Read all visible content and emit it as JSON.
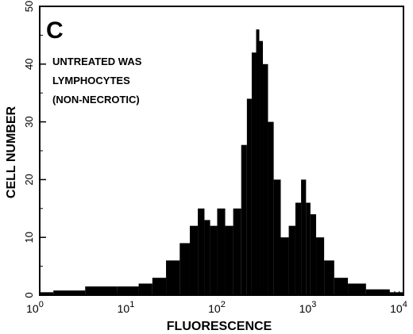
{
  "chart_data": {
    "type": "bar",
    "panel_label": "C",
    "annotation": [
      "UNTREATED WAS",
      "LYMPHOCYTES",
      "(NON-NECROTIC)"
    ],
    "xlabel": "FLUORESCENCE",
    "ylabel": "CELL NUMBER",
    "x_scale": "log",
    "xlim": [
      1,
      10000
    ],
    "ylim": [
      0,
      50
    ],
    "x_ticks": [
      {
        "value": 1,
        "base": "10",
        "exp": "0"
      },
      {
        "value": 10,
        "base": "10",
        "exp": "1"
      },
      {
        "value": 100,
        "base": "10",
        "exp": "2"
      },
      {
        "value": 1000,
        "base": "10",
        "exp": "3"
      },
      {
        "value": 10000,
        "base": "10",
        "exp": "4"
      }
    ],
    "y_ticks": [
      "0",
      "10",
      "20",
      "30",
      "40",
      "50"
    ],
    "grid": false,
    "legend": "none",
    "bar_color": "#000000",
    "series": [
      {
        "x": [
          1,
          2,
          5,
          10,
          15,
          20,
          30,
          40,
          50,
          60,
          70,
          80,
          100,
          120,
          150,
          180,
          200,
          230,
          250,
          270,
          300,
          350,
          400,
          500,
          600,
          700,
          800,
          900,
          1000,
          1200,
          1500,
          2000,
          3000,
          5000,
          10000
        ],
        "values": [
          0.5,
          0.8,
          1.5,
          1.5,
          2,
          3,
          6,
          9,
          12,
          15,
          13,
          12,
          15,
          12,
          15,
          26,
          34,
          42,
          46,
          44,
          40,
          30,
          20,
          10,
          12,
          16,
          20,
          16,
          14,
          10,
          6,
          3,
          2,
          1,
          0.5
        ]
      }
    ]
  }
}
